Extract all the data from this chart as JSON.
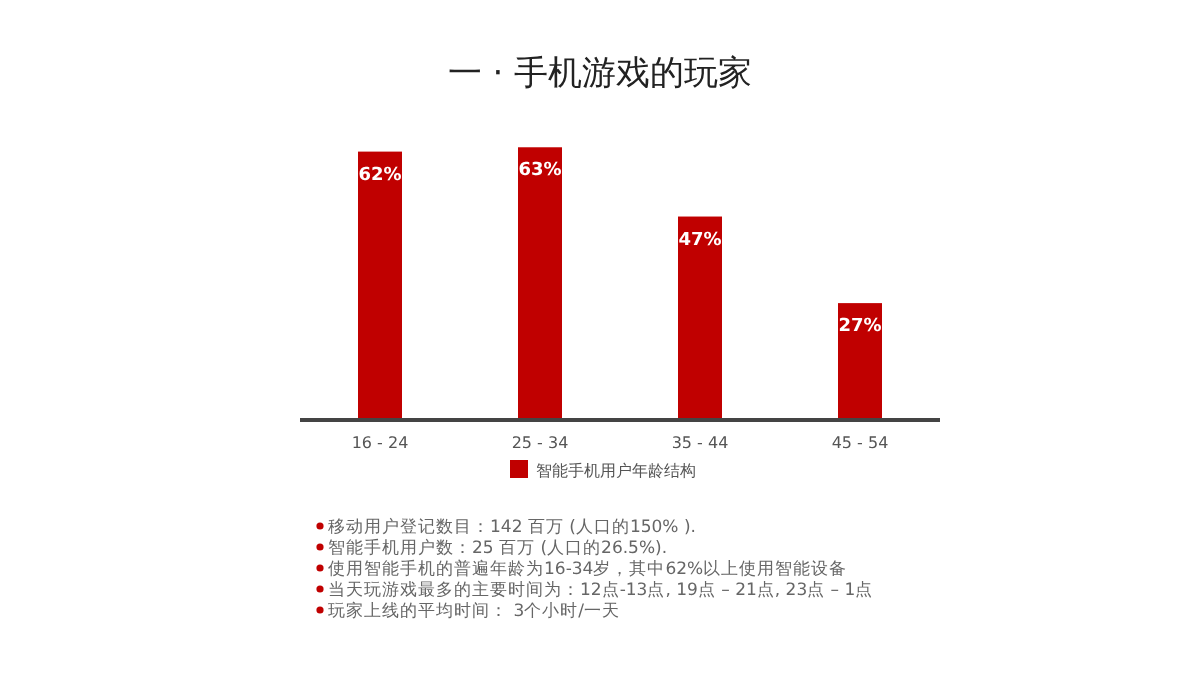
{
  "chart_data": {
    "type": "bar",
    "title": "一 · 手机游戏的玩家",
    "categories": [
      "16 - 24",
      "25 - 34",
      "35 - 44",
      "45 - 54"
    ],
    "series": [
      {
        "name": "智能手机用户年龄结构",
        "color": "#c00000",
        "values": [
          62,
          63,
          47,
          27
        ],
        "value_labels": [
          "62%",
          "63%",
          "47%",
          "27%"
        ]
      }
    ],
    "legend": "bottom",
    "annotations": [
      "移动用户登记数目：142 百万 (人口的150% ).",
      "智能手机用户数：25 百万 (人口的26.5%).",
      "使用智能手机的普遍年龄为16-34岁，其中62%以上使用智能设备",
      "当天玩游戏最多的主要时间为：12点-13点, 19点 – 21点, 23点 – 1点",
      "玩家上线的平均时间： 3个小时/一天"
    ]
  }
}
